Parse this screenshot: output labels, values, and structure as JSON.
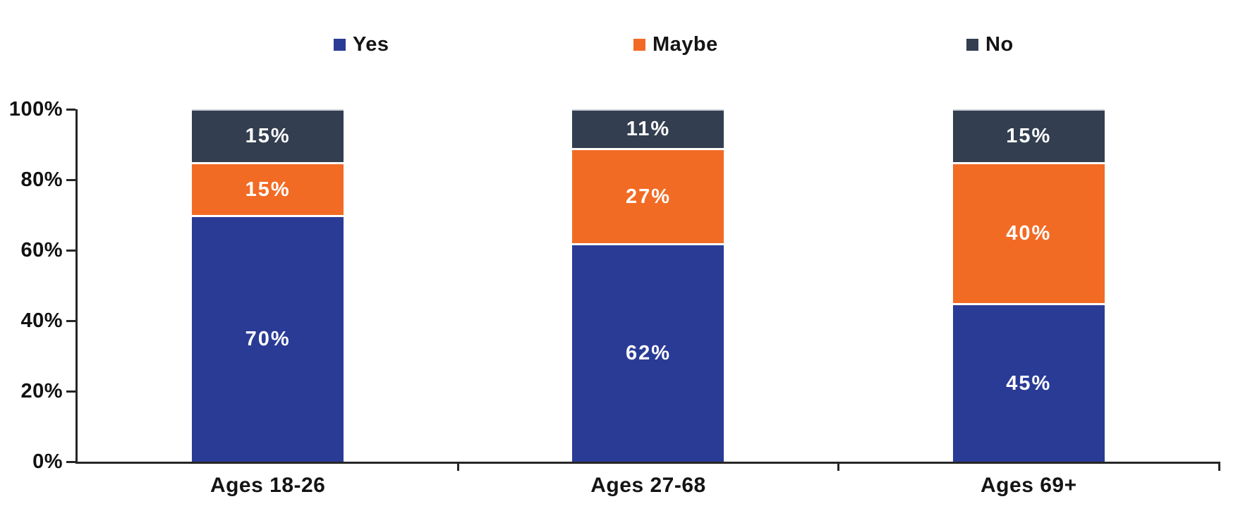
{
  "chart_data": {
    "type": "bar",
    "stacked": true,
    "orientation": "vertical",
    "categories": [
      "Ages 18-26",
      "Ages 27-68",
      "Ages 69+"
    ],
    "series": [
      {
        "name": "Yes",
        "color": "#2A3B96",
        "values": [
          70,
          62,
          45
        ],
        "labels": [
          "70%",
          "62%",
          "45%"
        ]
      },
      {
        "name": "Maybe",
        "color": "#F26B24",
        "values": [
          15,
          27,
          40
        ],
        "labels": [
          "15%",
          "27%",
          "40%"
        ]
      },
      {
        "name": "No",
        "color": "#333F50",
        "values": [
          15,
          11,
          15
        ],
        "labels": [
          "15%",
          "11%",
          "15%"
        ]
      }
    ],
    "yticks": [
      {
        "label": "0%",
        "value": 0
      },
      {
        "label": "20%",
        "value": 20
      },
      {
        "label": "40%",
        "value": 40
      },
      {
        "label": "60%",
        "value": 60
      },
      {
        "label": "80%",
        "value": 80
      },
      {
        "label": "100%",
        "value": 100
      }
    ],
    "ylim": [
      0,
      100
    ],
    "xlabel": "",
    "ylabel": "",
    "title": "",
    "legend_position": "top",
    "grid": false,
    "value_label_color": "#ffffff",
    "axis_color": "#262626"
  }
}
